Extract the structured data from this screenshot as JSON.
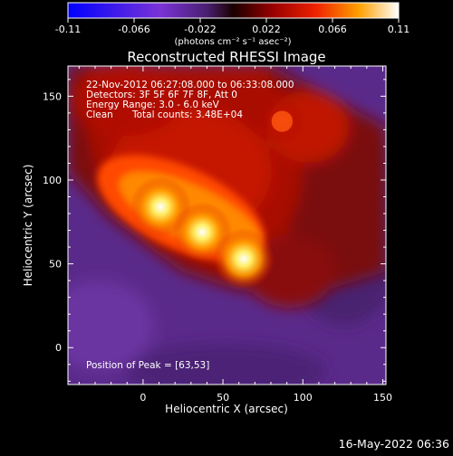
{
  "chart_data": {
    "type": "heatmap",
    "title": "Reconstructed RHESSI Image",
    "xlabel": "Heliocentric X (arcsec)",
    "ylabel": "Heliocentric Y (arcsec)",
    "xlim": [
      -47,
      152
    ],
    "ylim": [
      -22,
      168
    ],
    "x_ticks": [
      "0",
      "50",
      "100",
      "150"
    ],
    "y_ticks": [
      "0",
      "50",
      "100",
      "150"
    ],
    "x_tick_values": [
      0,
      50,
      100,
      150
    ],
    "y_tick_values": [
      0,
      50,
      100,
      150
    ],
    "colorbar": {
      "min": -0.11,
      "max": 0.11,
      "tick_labels": [
        "-0.11",
        "-0.066",
        "-0.022",
        "0.022",
        "0.066",
        "0.11"
      ],
      "units": "(photons cm⁻² s⁻¹ asec⁻²)",
      "colors": [
        "#0000ff",
        "#7a33d6",
        "#5a2a8c",
        "#3a1530",
        "#8a0000",
        "#ee2200",
        "#ff9900",
        "#ffffff"
      ]
    },
    "annotations": {
      "time_range": "22-Nov-2012 06:27:08.000 to 06:33:08.000",
      "detectors": "Detectors: 3F 5F 6F 7F 8F, Att 0",
      "energy_range": "Energy Range: 3.0 - 6.0 keV",
      "clean_label": "Clean",
      "total_counts": "Total counts: 3.48E+04",
      "peak_position": "Position of Peak = [63,53]"
    },
    "sources": [
      {
        "x": 11,
        "y": 84,
        "intensity": 1.0
      },
      {
        "x": 37,
        "y": 69,
        "intensity": 0.95
      },
      {
        "x": 63,
        "y": 53,
        "intensity": 1.0
      },
      {
        "x": 87,
        "y": 135,
        "intensity": 0.55
      }
    ]
  },
  "footer": {
    "timestamp": "16-May-2022 06:36"
  }
}
